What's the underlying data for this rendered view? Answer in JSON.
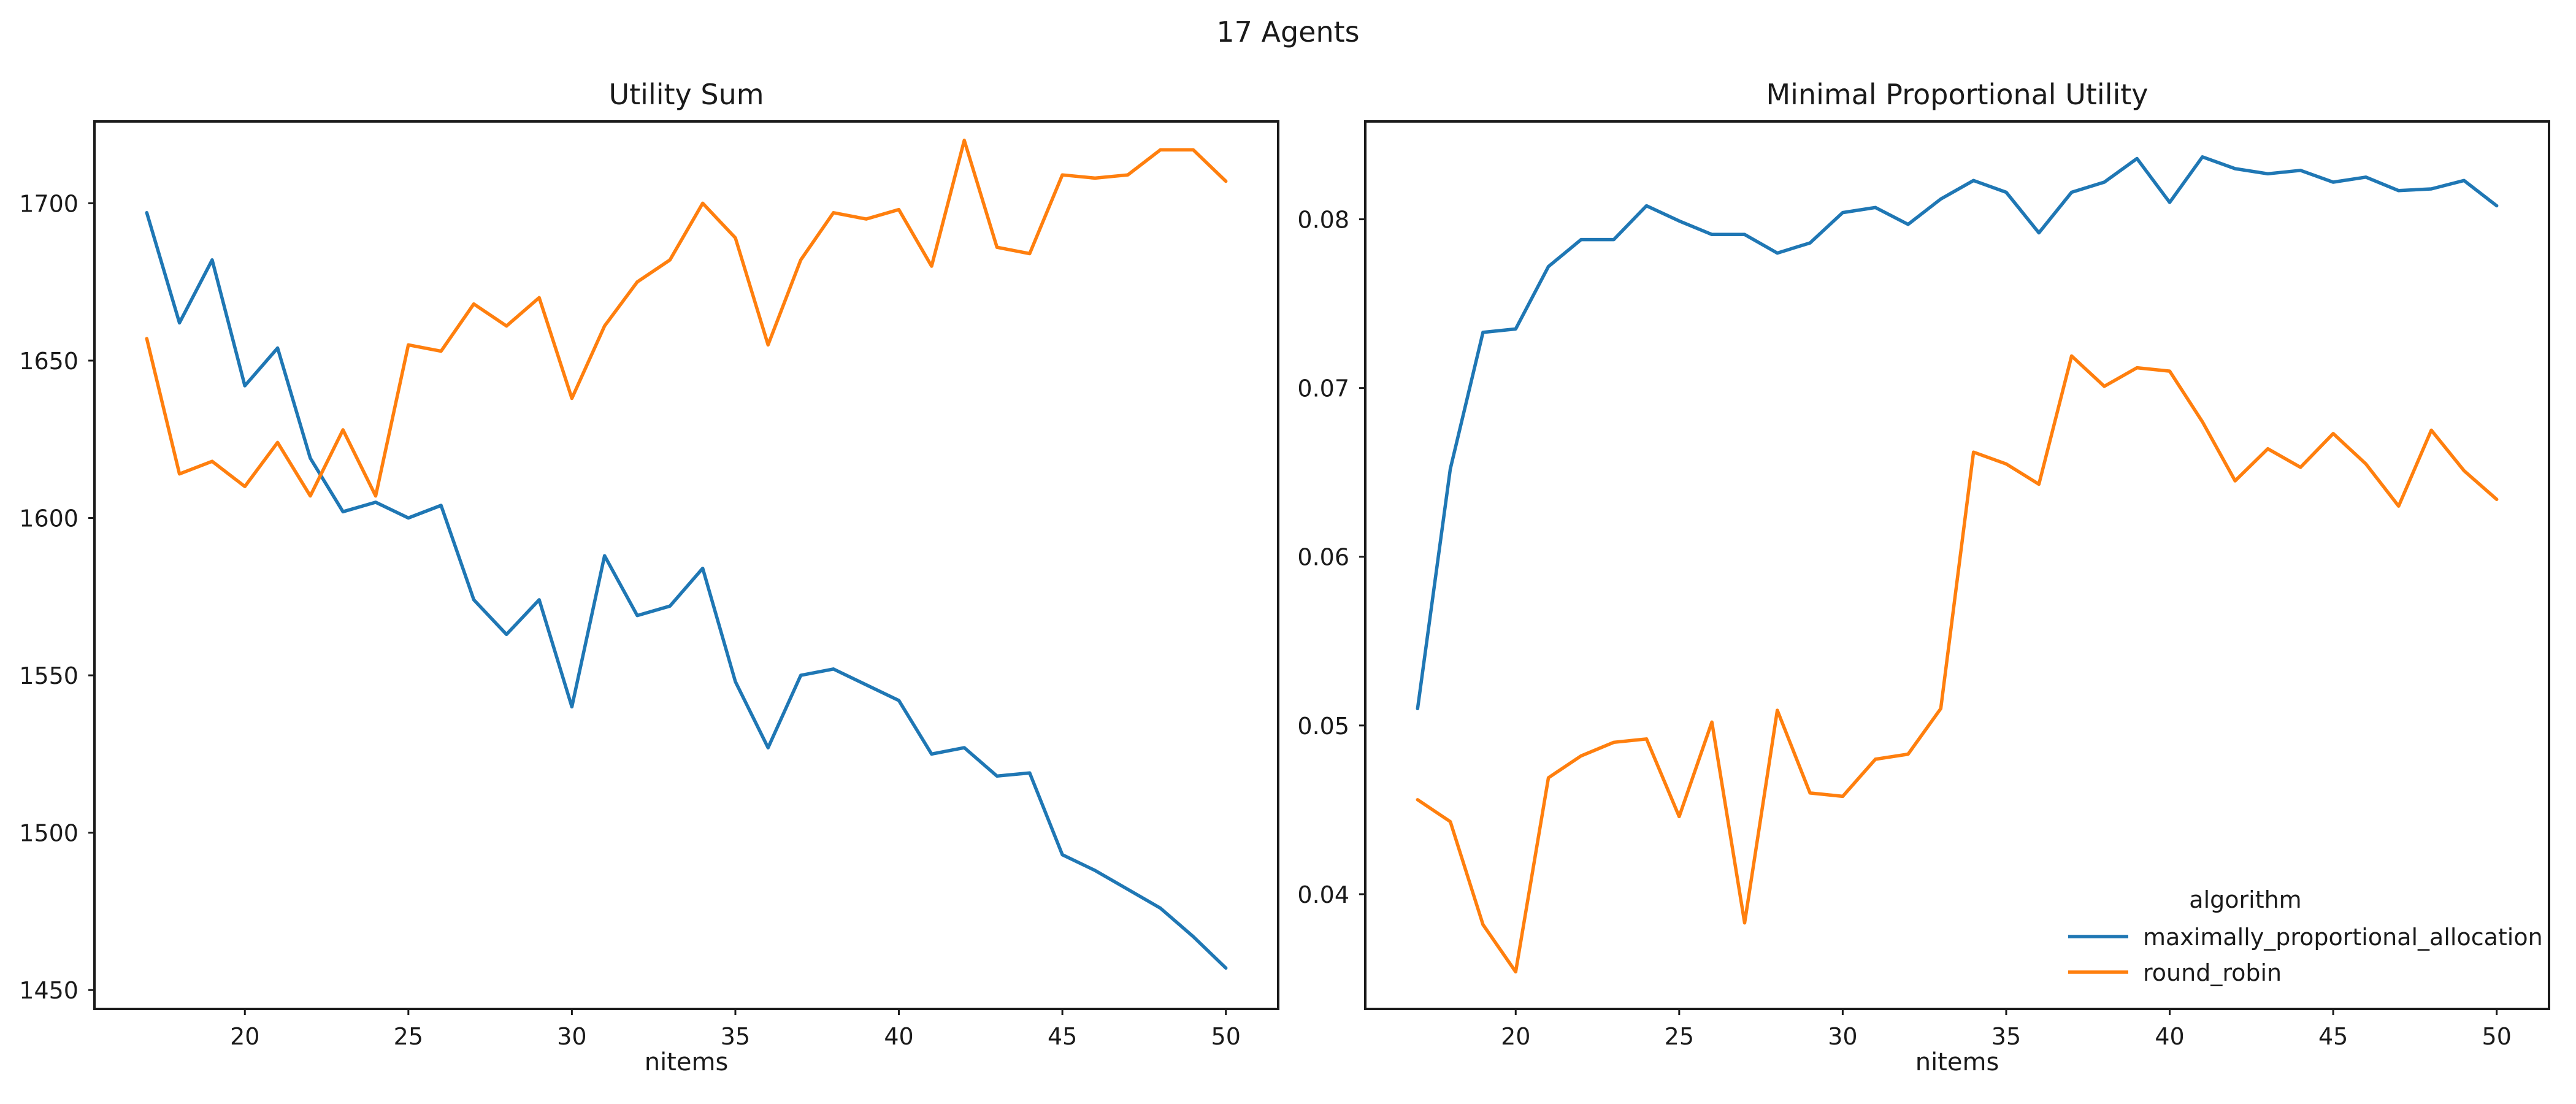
{
  "figure": {
    "suptitle": "17 Agents"
  },
  "colors": {
    "maximally_proportional_allocation": "#1f77b4",
    "round_robin": "#ff7f0e"
  },
  "chart_data": [
    {
      "type": "line",
      "title": "Utility Sum",
      "xlabel": "nitems",
      "ylabel": "",
      "xlim": [
        15.4,
        51.6
      ],
      "ylim": [
        1444,
        1726
      ],
      "xticks": [
        20,
        25,
        30,
        35,
        40,
        45,
        50
      ],
      "yticks": [
        1450,
        1500,
        1550,
        1600,
        1650,
        1700
      ],
      "grid": false,
      "x": [
        17,
        18,
        19,
        20,
        21,
        22,
        23,
        24,
        25,
        26,
        27,
        28,
        29,
        30,
        31,
        32,
        33,
        34,
        35,
        36,
        37,
        38,
        39,
        40,
        41,
        42,
        43,
        44,
        45,
        46,
        47,
        48,
        49,
        50
      ],
      "series": [
        {
          "name": "maximally_proportional_allocation",
          "values": [
            1697,
            1662,
            1682,
            1642,
            1654,
            1619,
            1602,
            1605,
            1600,
            1604,
            1574,
            1563,
            1574,
            1540,
            1588,
            1569,
            1572,
            1584,
            1548,
            1527,
            1550,
            1552,
            1547,
            1542,
            1525,
            1527,
            1518,
            1519,
            1493,
            1488,
            1482,
            1476,
            1467,
            1457
          ]
        },
        {
          "name": "round_robin",
          "values": [
            1657,
            1614,
            1618,
            1610,
            1624,
            1607,
            1628,
            1607,
            1655,
            1653,
            1668,
            1661,
            1670,
            1638,
            1661,
            1675,
            1682,
            1700,
            1689,
            1655,
            1682,
            1697,
            1695,
            1698,
            1680,
            1720,
            1686,
            1684,
            1709,
            1708,
            1709,
            1717,
            1717,
            1707
          ]
        }
      ]
    },
    {
      "type": "line",
      "title": "Minimal Proportional Utility",
      "xlabel": "nitems",
      "ylabel": "",
      "xlim": [
        15.4,
        51.6
      ],
      "ylim": [
        0.0332,
        0.0858
      ],
      "xticks": [
        20,
        25,
        30,
        35,
        40,
        45,
        50
      ],
      "yticks": [
        0.04,
        0.05,
        0.06,
        0.07,
        0.08
      ],
      "grid": false,
      "legend": {
        "title": "algorithm",
        "placement": "lower-right",
        "entries": [
          "maximally_proportional_allocation",
          "round_robin"
        ]
      },
      "x": [
        17,
        18,
        19,
        20,
        21,
        22,
        23,
        24,
        25,
        26,
        27,
        28,
        29,
        30,
        31,
        32,
        33,
        34,
        35,
        36,
        37,
        38,
        39,
        40,
        41,
        42,
        43,
        44,
        45,
        46,
        47,
        48,
        49,
        50
      ],
      "series": [
        {
          "name": "maximally_proportional_allocation",
          "values": [
            0.051,
            0.0652,
            0.0733,
            0.0735,
            0.0772,
            0.0788,
            0.0788,
            0.0808,
            0.0799,
            0.0791,
            0.0791,
            0.078,
            0.0786,
            0.0804,
            0.0807,
            0.0797,
            0.0812,
            0.0823,
            0.0816,
            0.0792,
            0.0816,
            0.0822,
            0.0836,
            0.081,
            0.0837,
            0.083,
            0.0827,
            0.0829,
            0.0822,
            0.0825,
            0.0817,
            0.0818,
            0.0823,
            0.0808
          ]
        },
        {
          "name": "round_robin",
          "values": [
            0.0456,
            0.0443,
            0.0382,
            0.0354,
            0.0469,
            0.0482,
            0.049,
            0.0492,
            0.0446,
            0.0502,
            0.0383,
            0.0509,
            0.046,
            0.0458,
            0.048,
            0.0483,
            0.051,
            0.0662,
            0.0655,
            0.0643,
            0.0719,
            0.0701,
            0.0712,
            0.071,
            0.068,
            0.0645,
            0.0664,
            0.0653,
            0.0673,
            0.0655,
            0.063,
            0.0675,
            0.0651,
            0.0634
          ]
        }
      ]
    }
  ]
}
